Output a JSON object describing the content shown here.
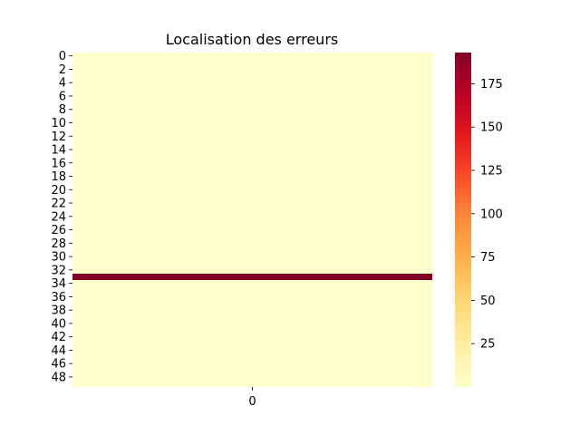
{
  "chart_data": {
    "type": "heatmap",
    "title": "Localisation des erreurs",
    "xlabel": "",
    "ylabel": "",
    "x_categories": [
      "0"
    ],
    "y_categories": [
      "0",
      "1",
      "2",
      "3",
      "4",
      "5",
      "6",
      "7",
      "8",
      "9",
      "10",
      "11",
      "12",
      "13",
      "14",
      "15",
      "16",
      "17",
      "18",
      "19",
      "20",
      "21",
      "22",
      "23",
      "24",
      "25",
      "26",
      "27",
      "28",
      "29",
      "30",
      "31",
      "32",
      "33",
      "34",
      "35",
      "36",
      "37",
      "38",
      "39",
      "40",
      "41",
      "42",
      "43",
      "44",
      "45",
      "46",
      "47",
      "48",
      "49"
    ],
    "y_tick_labels": [
      "0",
      "2",
      "4",
      "6",
      "8",
      "10",
      "12",
      "14",
      "16",
      "18",
      "20",
      "22",
      "24",
      "26",
      "28",
      "30",
      "32",
      "34",
      "36",
      "38",
      "40",
      "42",
      "44",
      "46",
      "48"
    ],
    "x_tick_labels": [
      "0"
    ],
    "values": [
      [
        0
      ],
      [
        0
      ],
      [
        0
      ],
      [
        0
      ],
      [
        0
      ],
      [
        0
      ],
      [
        0
      ],
      [
        0
      ],
      [
        0
      ],
      [
        0
      ],
      [
        0
      ],
      [
        0
      ],
      [
        0
      ],
      [
        0
      ],
      [
        0
      ],
      [
        0
      ],
      [
        0
      ],
      [
        0
      ],
      [
        0
      ],
      [
        0
      ],
      [
        0
      ],
      [
        0
      ],
      [
        0
      ],
      [
        0
      ],
      [
        0
      ],
      [
        0
      ],
      [
        0
      ],
      [
        0
      ],
      [
        0
      ],
      [
        0
      ],
      [
        0
      ],
      [
        0
      ],
      [
        0
      ],
      [
        193
      ],
      [
        0
      ],
      [
        0
      ],
      [
        0
      ],
      [
        0
      ],
      [
        0
      ],
      [
        0
      ],
      [
        0
      ],
      [
        0
      ],
      [
        0
      ],
      [
        0
      ],
      [
        0
      ],
      [
        0
      ],
      [
        0
      ],
      [
        0
      ],
      [
        0
      ],
      [
        0
      ]
    ],
    "colorbar": {
      "colormap": "YlOrRd",
      "vmin": 0,
      "vmax": 193,
      "ticks": [
        "25",
        "50",
        "75",
        "100",
        "125",
        "150",
        "175"
      ]
    },
    "grid": false
  }
}
